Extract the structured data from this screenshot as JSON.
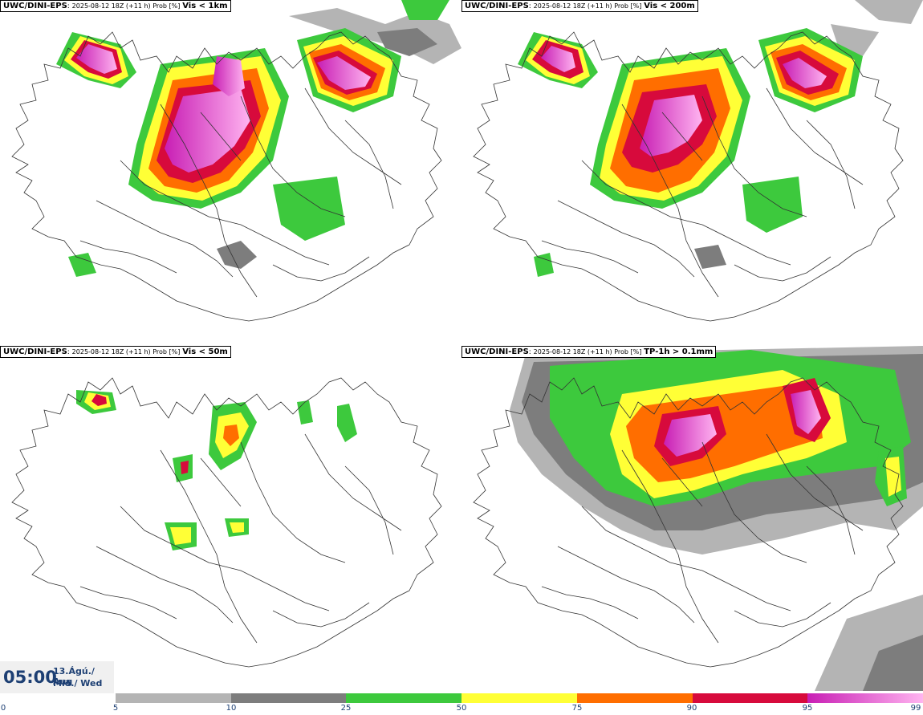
{
  "panels": [
    {
      "model": "UWC/DINI-EPS",
      "run_info": "2025-08-12 18Z (+11 h) Prob [%]",
      "variable": "Vis < 1km"
    },
    {
      "model": "UWC/DINI-EPS",
      "run_info": "2025-08-12 18Z (+11 h) Prob [%]",
      "variable": "Vis < 200m"
    },
    {
      "model": "UWC/DINI-EPS",
      "run_info": "2025-08-12 18Z (+11 h) Prob [%]",
      "variable": "Vis < 50m"
    },
    {
      "model": "UWC/DINI-EPS",
      "run_info": "2025-08-12 18Z (+11 h) Prob [%]",
      "variable": "TP-1h > 0.1mm"
    }
  ],
  "valid_time": {
    "time": "05:00",
    "date_line1": "13.Ágú./ Aug",
    "date_line2": "Mið./ Wed"
  },
  "legend": {
    "ticks": [
      "0",
      "5",
      "10",
      "25",
      "50",
      "75",
      "90",
      "95",
      "99"
    ],
    "colors": {
      "5-10": "#b4b4b4",
      "10-25": "#7d7d7d",
      "25-50": "#3dc93d",
      "50-75": "#ffff36",
      "75-90": "#ff6e00",
      "90-95": "#d70a3c",
      "95-99_start": "#c81eb4",
      "95-99_end": "#ffb4f0"
    }
  }
}
